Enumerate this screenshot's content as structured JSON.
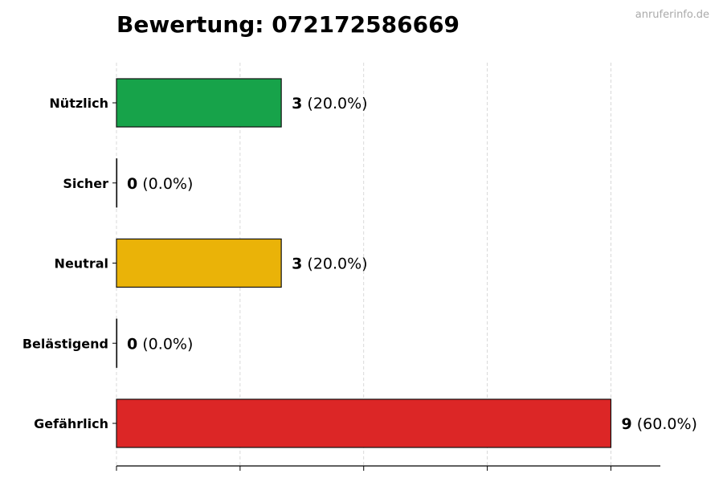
{
  "chart_data": {
    "type": "bar",
    "orientation": "horizontal",
    "title": "Bewertung: 072172586669",
    "watermark": "anruferinfo.de",
    "categories": [
      "Nützlich",
      "Sicher",
      "Neutral",
      "Belästigend",
      "Gefährlich"
    ],
    "values": [
      3,
      0,
      3,
      0,
      9
    ],
    "percent_labels": [
      "(20.0%)",
      "(0.0%)",
      "(20.0%)",
      "(0.0%)",
      "(60.0%)"
    ],
    "colors": [
      "#17a34a",
      "#94a3b8",
      "#eab308",
      "#f97316",
      "#dc2626"
    ],
    "xlim": [
      0,
      9.9
    ],
    "xticks": [
      0,
      2.25,
      4.5,
      6.75,
      9
    ],
    "xtick_labels_shown": false,
    "grid": "vertical dashed",
    "xlabel": "",
    "ylabel": ""
  }
}
